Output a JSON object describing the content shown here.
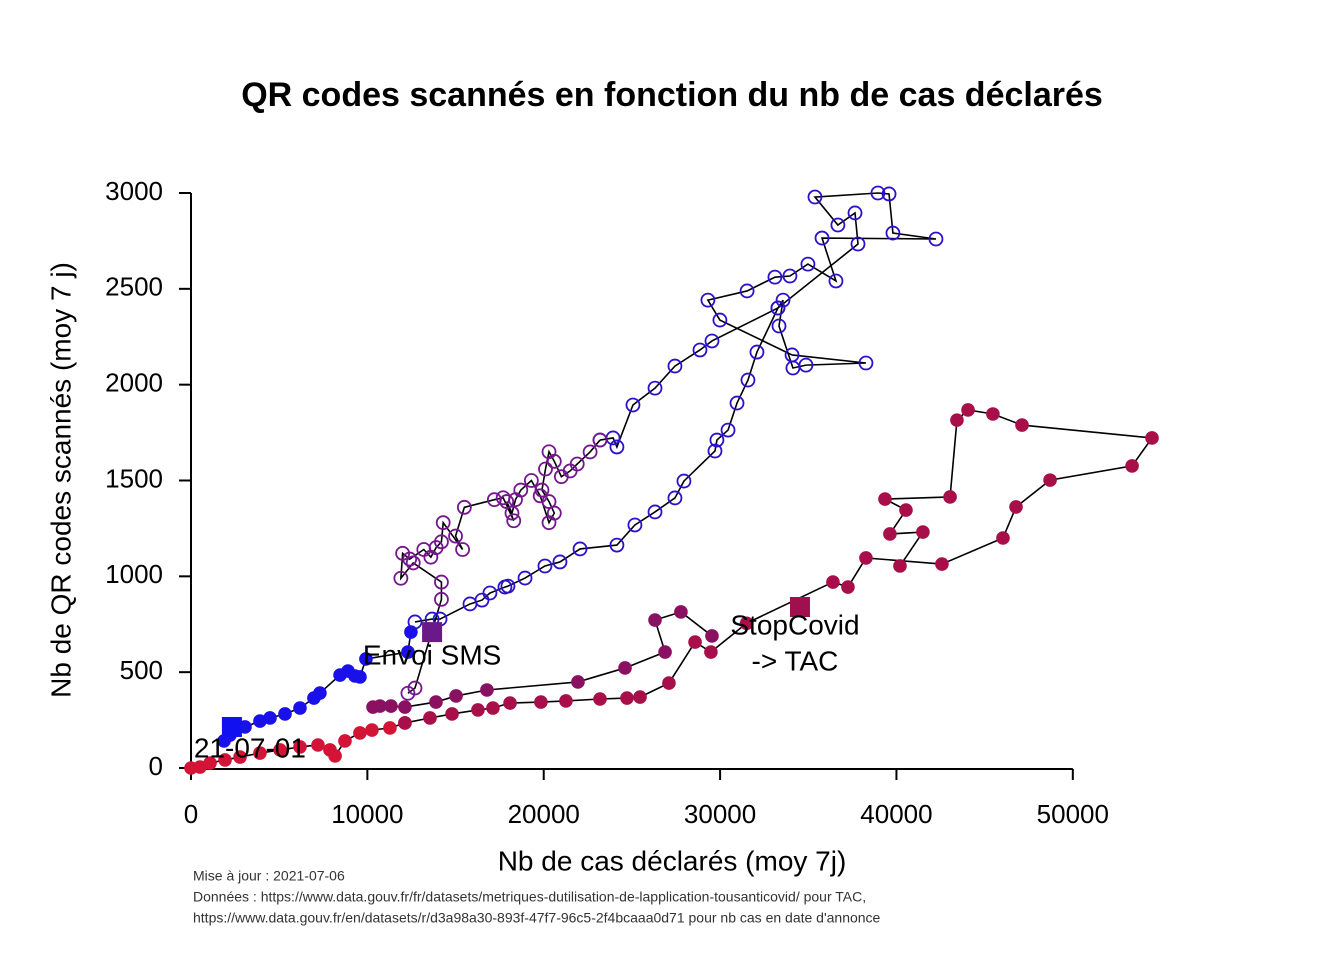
{
  "chart_data": {
    "type": "scatter",
    "title": "QR codes scannés en fonction du nb de cas déclarés",
    "xlabel": "Nb de cas déclarés (moy 7j)",
    "ylabel": "Nb de QR codes scannés (moy 7 j)",
    "xlim": [
      0,
      54490
    ],
    "ylim": [
      0,
      3000
    ],
    "xticks": [
      0,
      10000,
      20000,
      30000,
      40000,
      50000
    ],
    "yticks": [
      0,
      500,
      1000,
      1500,
      2000,
      2500,
      3000
    ],
    "line_color": "#000000",
    "series": [
      {
        "color": "#d41436",
        "marker": "filled",
        "x": [
          0,
          510,
          1080,
          1930,
          2780,
          3910,
          5050,
          6180,
          7200,
          7880,
          8170,
          8730,
          9580,
          10260,
          11280,
          12130
        ],
        "values": [
          0,
          5,
          26,
          42,
          57,
          78,
          94,
          110,
          120,
          94,
          63,
          141,
          183,
          198,
          209,
          235
        ]
      },
      {
        "color": "#a80f4a",
        "marker": "filled",
        "x": [
          12130,
          13550,
          14800,
          16270,
          17120,
          18090,
          19840,
          21260,
          23190,
          24720,
          25460,
          27100,
          28580,
          29480,
          31500,
          36400,
          37250,
          38270,
          42580,
          46040,
          46780,
          48710,
          53360,
          54490,
          47120,
          45470,
          44060,
          43430,
          43040,
          39350,
          40540,
          39630,
          41500,
          40200
        ],
        "values": [
          235,
          261,
          282,
          303,
          313,
          339,
          344,
          350,
          360,
          365,
          370,
          443,
          657,
          605,
          755,
          970,
          944,
          1096,
          1064,
          1200,
          1362,
          1502,
          1576,
          1722,
          1789,
          1847,
          1868,
          1815,
          1414,
          1403,
          1346,
          1221,
          1231,
          1054
        ]
      },
      {
        "color": "#8a1062",
        "marker": "filled",
        "x": [
          29540,
          27780,
          26310,
          26880,
          24610,
          21940,
          16780,
          15030,
          13890,
          12130,
          11340,
          10720,
          10320
        ],
        "values": [
          689,
          814,
          772,
          605,
          522,
          449,
          407,
          376,
          344,
          318,
          323,
          323,
          318
        ]
      },
      {
        "color": "#1a10ea",
        "marker": "filled",
        "x": [
          12470,
          12300,
          9920,
          9580,
          9300,
          8900,
          8450,
          7310,
          6970,
          6180,
          5330,
          4480,
          3910,
          3060,
          2210,
          1870
        ],
        "values": [
          709,
          605,
          569,
          475,
          480,
          506,
          485,
          391,
          365,
          313,
          282,
          261,
          245,
          214,
          172,
          141
        ]
      },
      {
        "color": "#2a12cc",
        "marker": "hollow",
        "x": [
          12700,
          13670,
          14120,
          15820,
          16500,
          16950,
          17800,
          17970,
          18940,
          20070,
          20920,
          22060,
          24150,
          25170,
          26310,
          27440,
          27950,
          29710,
          29820,
          30450,
          30960,
          31580,
          32090,
          33280,
          33570,
          33340,
          34130,
          34870,
          38270,
          34080,
          29990,
          29310,
          31530,
          33110,
          33960,
          34980,
          36570,
          35780,
          42240,
          39800,
          39580,
          38950,
          35380,
          36680,
          37650,
          37820,
          33280,
          29540,
          28860,
          27440,
          26310,
          25060,
          24150,
          23930,
          23190
        ],
        "values": [
          762,
          777,
          777,
          856,
          876,
          913,
          944,
          949,
          991,
          1054,
          1075,
          1143,
          1163,
          1268,
          1336,
          1409,
          1497,
          1654,
          1711,
          1763,
          1904,
          2024,
          2170,
          2400,
          2441,
          2306,
          2087,
          2102,
          2113,
          2155,
          2337,
          2441,
          2489,
          2561,
          2567,
          2629,
          2541,
          2765,
          2760,
          2791,
          2995,
          3000,
          2979,
          2833,
          2896,
          2734,
          2400,
          2228,
          2181,
          2097,
          1982,
          1894,
          1675,
          1722,
          1711
        ]
      },
      {
        "color": "#74168e",
        "marker": "hollow",
        "x": [
          23190,
          22630,
          21900,
          21500,
          21000,
          20600,
          20300,
          20100,
          19900,
          20300,
          20600,
          20300,
          19800,
          19300,
          18700,
          18400,
          18200,
          17900,
          18300,
          17700,
          17200,
          15500,
          15000,
          15400,
          14300,
          14200,
          13900,
          13600,
          13200,
          12400,
          12000,
          11900,
          12600,
          14200,
          14200,
          12700,
          12300
        ],
        "values": [
          1711,
          1649,
          1586,
          1550,
          1520,
          1600,
          1650,
          1560,
          1450,
          1390,
          1330,
          1280,
          1420,
          1500,
          1450,
          1400,
          1330,
          1390,
          1290,
          1410,
          1400,
          1360,
          1210,
          1140,
          1280,
          1180,
          1150,
          1100,
          1140,
          1090,
          1120,
          990,
          1070,
          970,
          880,
          417,
          390
        ]
      }
    ],
    "markers": [
      {
        "label": [
          "Envoi SMS"
        ],
        "x": 13670,
        "y": 709,
        "color": "#6a1a88"
      },
      {
        "label": [
          "StopCovid",
          "-> TAC"
        ],
        "x": 34530,
        "y": 840,
        "color": "#a0104e"
      },
      {
        "label": [
          "21-07-01"
        ],
        "x": 2320,
        "y": 214,
        "color": "#1010f0"
      }
    ],
    "notes": [
      "Mise à jour : 2021-07-06",
      "Données : https://www.data.gouv.fr/fr/datasets/metriques-dutilisation-de-lapplication-tousanticovid/ pour TAC,",
      "https://www.data.gouv.fr/en/datasets/r/d3a98a30-893f-47f7-96c5-2f4bcaaa0d71 pour nb cas en date d'annonce"
    ]
  }
}
